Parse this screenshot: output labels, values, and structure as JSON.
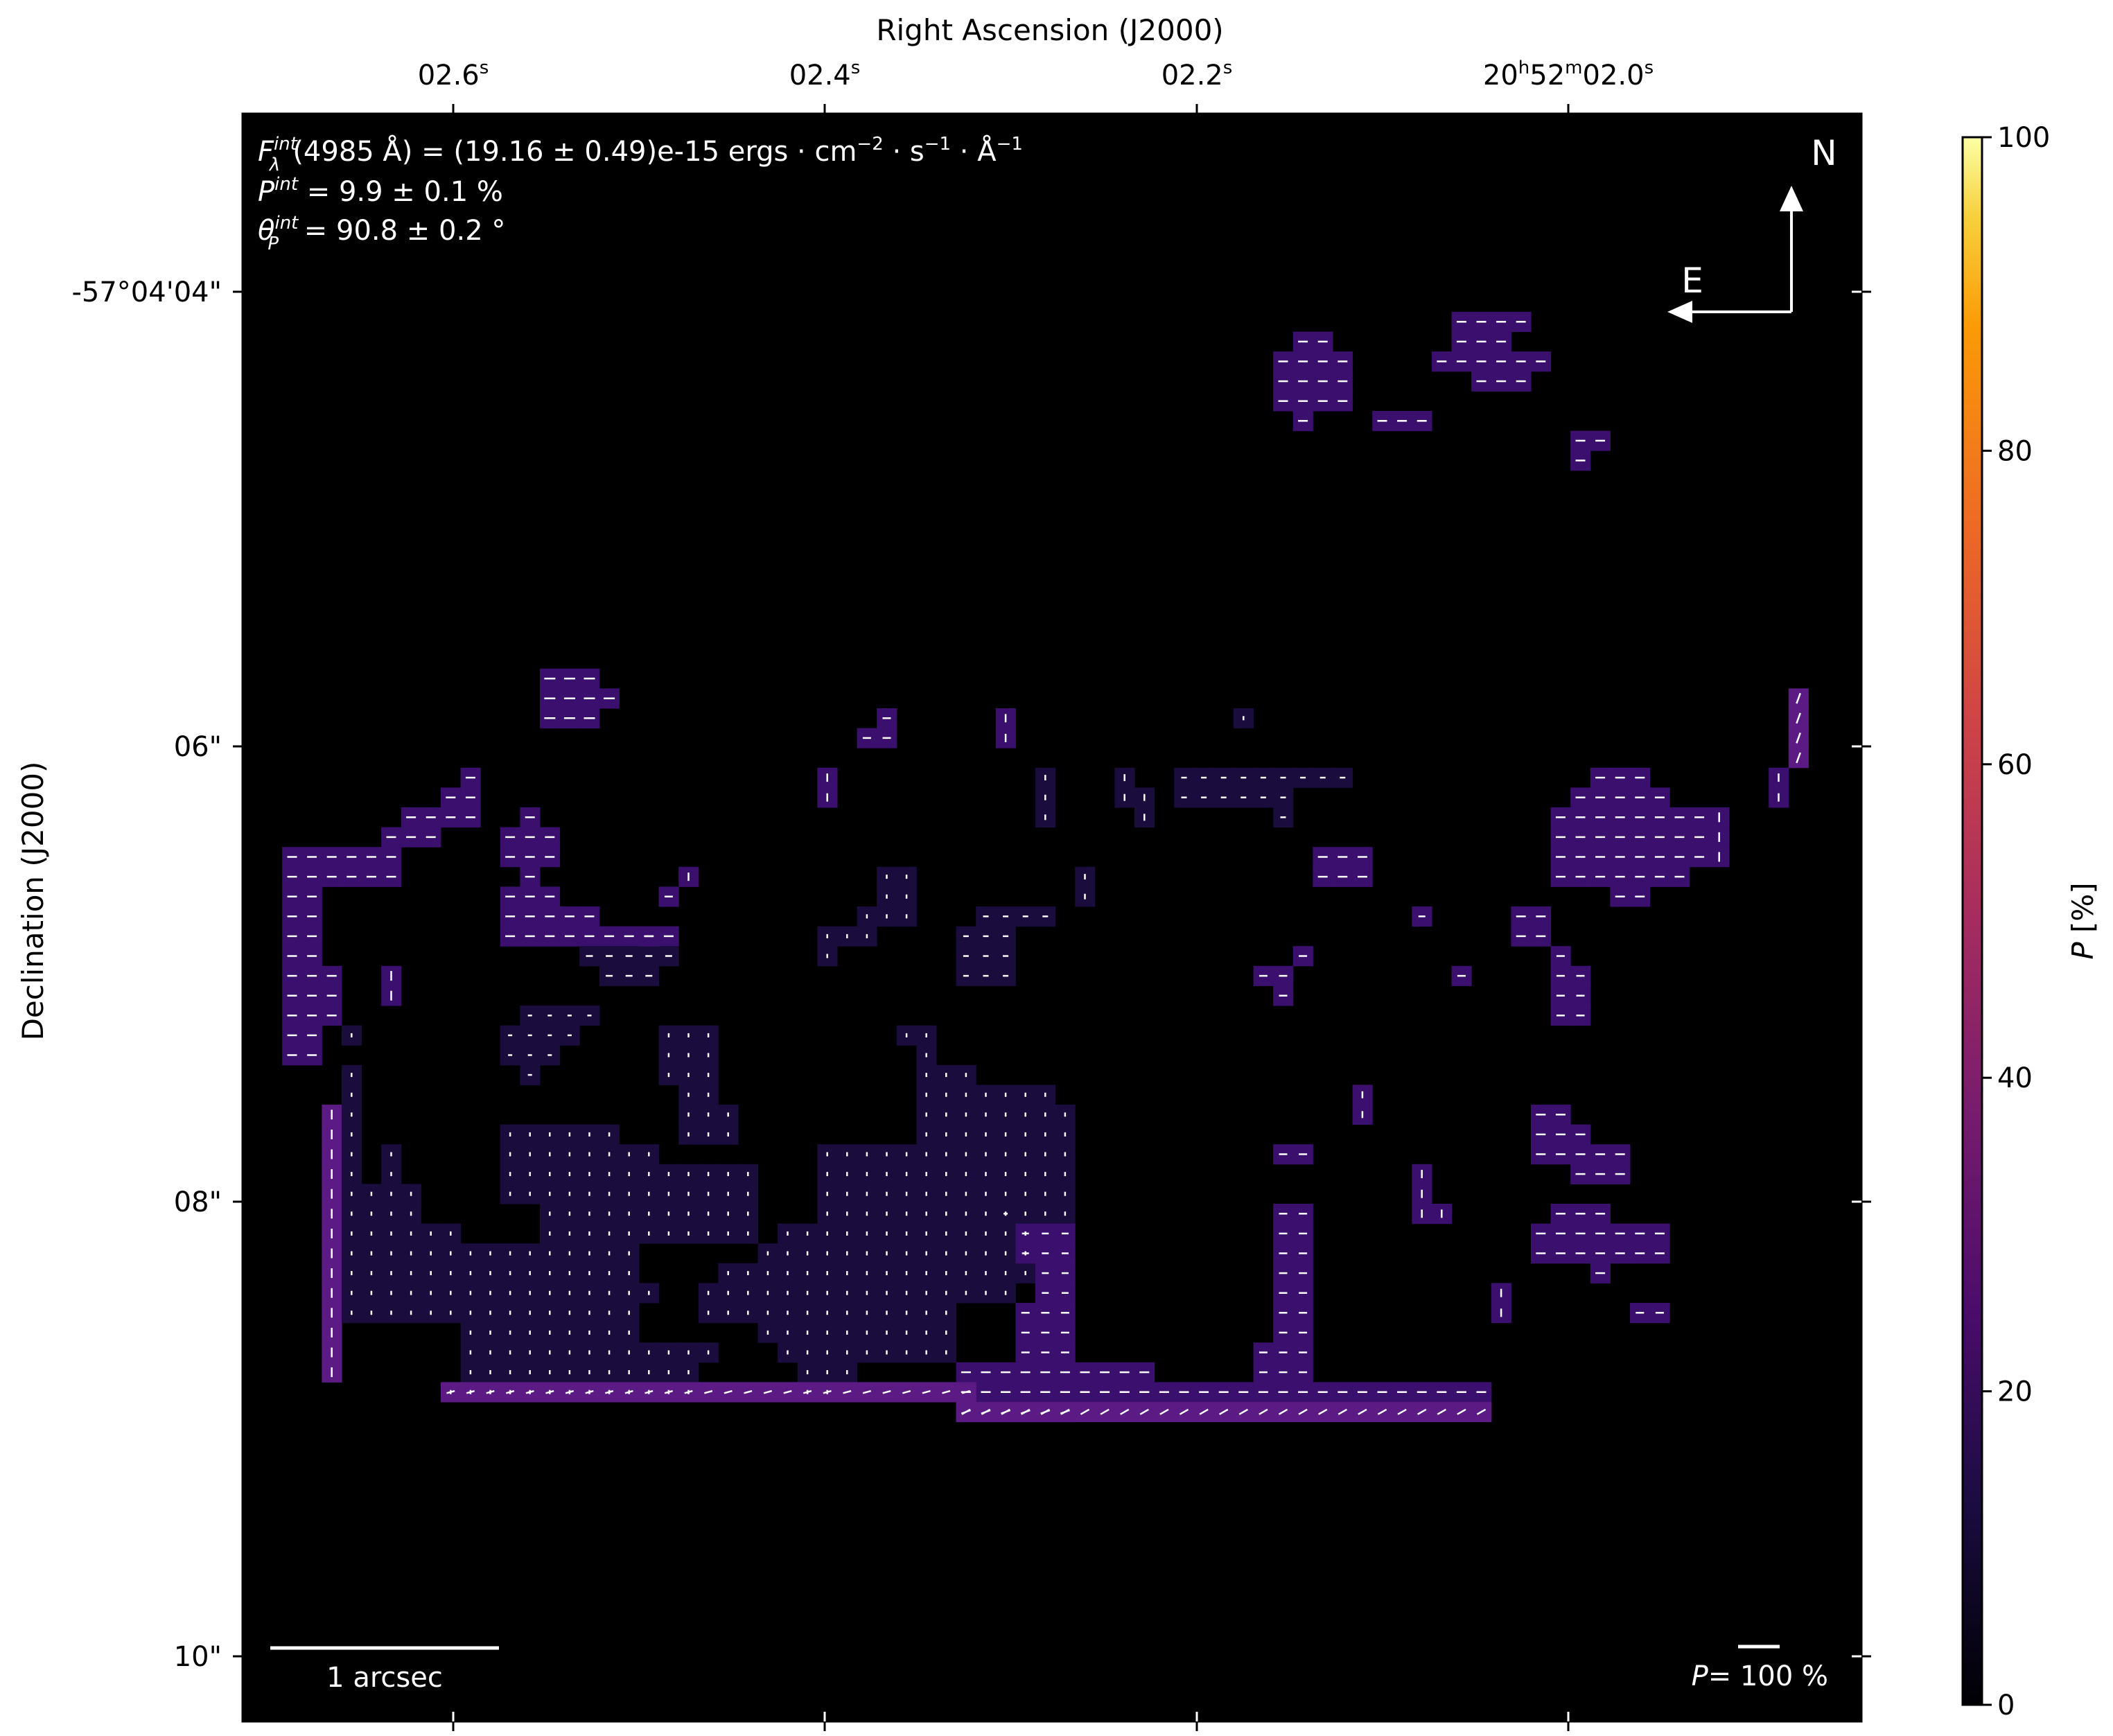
{
  "chart_data": {
    "type": "heatmap",
    "top_axis_label": "Right Ascension (J2000)",
    "left_axis_label": "Declination (J2000)",
    "colorbar_label": "P [%]",
    "ra_ticks": [
      {
        "base": "02.6",
        "sup": "s"
      },
      {
        "base": "02.4",
        "sup": "s"
      },
      {
        "base": "02.2",
        "sup": "s"
      },
      {
        "base": "20",
        "sup": "h",
        "base2": "52",
        "sup2": "m",
        "base3": "02.0",
        "sup3": "s"
      }
    ],
    "dec_ticks": [
      "-57°04'04\"",
      "06\"",
      "08\"",
      "10\""
    ],
    "colorbar_ticks": [
      "0",
      "20",
      "40",
      "60",
      "80",
      "100"
    ],
    "colorbar_range": [
      0,
      100
    ],
    "colormap": "inferno",
    "annotations": {
      "flux": {
        "sym": "F",
        "sup": "int",
        "sub": "λ",
        "rest": "(4985 Å) = (19.16 ± 0.49)e-15 ergs · cm",
        "u1": "−2",
        "mid": " · s",
        "u2": "−1",
        "mid2": " · Å",
        "u3": "−1"
      },
      "pol": {
        "sym": "P",
        "sup": "int",
        "rest": " = 9.9 ± 0.1 %"
      },
      "angle": {
        "sym": "θ",
        "sub": "P",
        "sup": "int",
        "rest": " = 90.8 ± 0.2 °"
      },
      "north": "N",
      "east": "E",
      "scalebar": "1 arcsec",
      "vector_scale_sym": "P",
      "vector_scale_rest": "= 100 %"
    },
    "colors": {
      "background": "#000000",
      "vector": "#ffffff",
      "low": "#1a0c3d",
      "mid": "#3b0f6e",
      "high": "#5c1a84"
    },
    "regions_note_cells": [
      {
        "row": 0,
        "c0": 16,
        "c1": 20,
        "p": 18
      },
      {
        "row": 1,
        "c0": 0,
        "c1": 3,
        "p": 15
      },
      {
        "row": 1,
        "c0": 14,
        "c1": 22,
        "p": 12
      }
    ]
  }
}
